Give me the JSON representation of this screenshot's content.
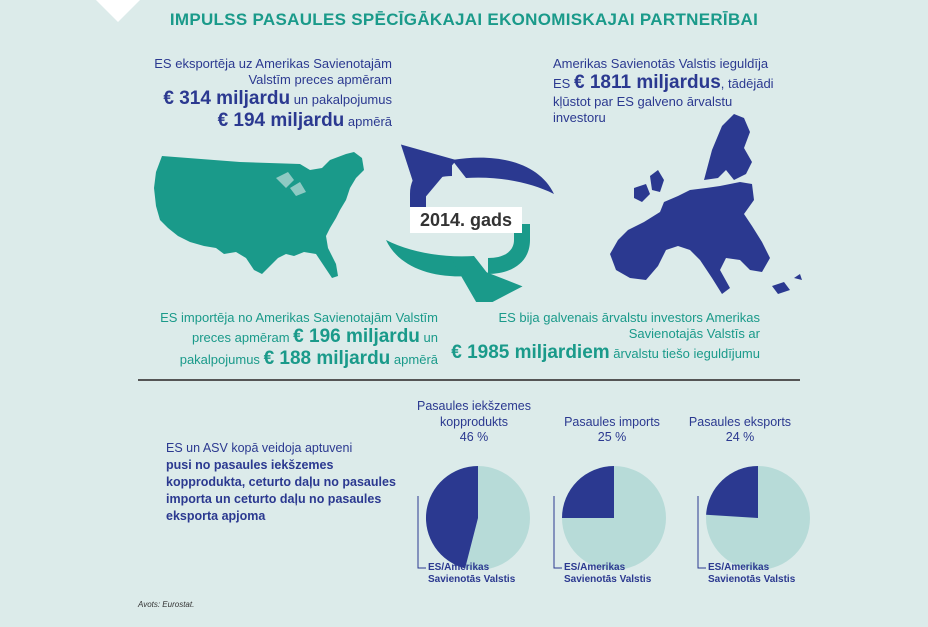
{
  "title": "IMPULSS PASAULES SPĒCĪGĀKAJAI EKONOMISKAJAI PARTNERĪBAI",
  "export_block": {
    "line1": "ES eksportēja uz Amerikas Savienotajām",
    "line2": "Valstīm preces apmēram",
    "goods_value": "€ 314 miljardu",
    "services_prefix": "un pakalpojumus",
    "services_value": "€ 194 miljardu",
    "suffix": "apmērā"
  },
  "investment_block": {
    "line1": "Amerikas Savienotās Valstis ieguldīja",
    "prefix": "ES",
    "value": "€ 1811 miljardus",
    "suffix": ", tādējādi",
    "line3": "kļūstot par ES galveno ārvalstu",
    "line4": "investoru"
  },
  "year_label": "2014. gads",
  "import_block": {
    "line1": "ES importēja no Amerikas Savienotajām Valstīm",
    "line2_prefix": "preces apmēram",
    "goods_value": "€ 196 miljardu",
    "line2_suffix": "un",
    "line3_prefix": "pakalpojumus",
    "services_value": "€ 188 miljardu",
    "suffix": "apmērā"
  },
  "eu_investor_block": {
    "line1": "ES bija galvenais ārvalstu investors Amerikas",
    "line2": "Savienotajās Valstīs ar",
    "value": "€ 1985 miljardiem",
    "suffix": "ārvalstu tiešo ieguldījumu"
  },
  "summary": {
    "line1": "ES un ASV kopā veidoja aptuveni",
    "bold": "pusi no pasaules iekšzemes kopprodukta, ceturto daļu no pasaules importa un ceturto daļu no pasaules eksporta apjoma"
  },
  "pies": [
    {
      "label_line1": "Pasaules iekšzemes",
      "label_line2": "kopprodukts",
      "percent_label": "46 %",
      "share": 0.46
    },
    {
      "label_line1": "",
      "label_line2": "Pasaules imports",
      "percent_label": "25 %",
      "share": 0.25
    },
    {
      "label_line1": "",
      "label_line2": "Pasaules eksports",
      "percent_label": "24 %",
      "share": 0.24
    }
  ],
  "legend_line1": "ES/Amerikas",
  "legend_line2": "Savienotās Valstis",
  "source": "Avots: Eurostat.",
  "colors": {
    "teal": "#1a9a8a",
    "navy": "#2b3990",
    "pie_bg": "#b7dbd8",
    "background": "#dcebea"
  }
}
